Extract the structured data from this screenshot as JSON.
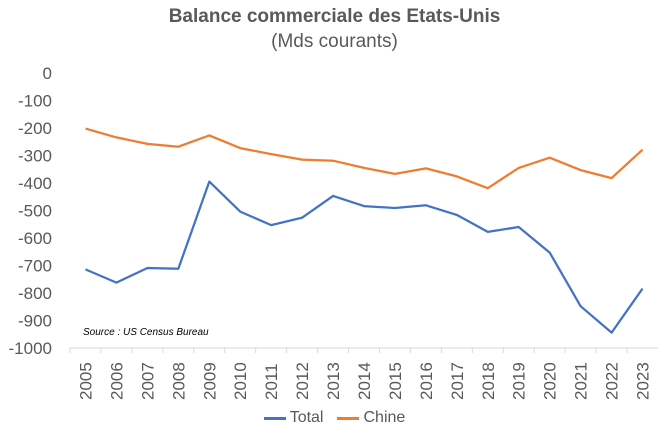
{
  "chart_data": {
    "type": "line",
    "title": "Balance commerciale des Etats-Unis",
    "subtitle": "(Mds courants)",
    "xlabel": "",
    "ylabel": "",
    "categories": [
      "2005",
      "2006",
      "2007",
      "2008",
      "2009",
      "2010",
      "2011",
      "2012",
      "2013",
      "2014",
      "2015",
      "2016",
      "2017",
      "2018",
      "2019",
      "2020",
      "2021",
      "2022",
      "2023"
    ],
    "ylim": [
      -1000,
      0
    ],
    "yticks": [
      0,
      -100,
      -200,
      -300,
      -400,
      -500,
      -600,
      -700,
      -800,
      -900,
      -1000
    ],
    "grid": false,
    "legend_position": "bottom",
    "source": "Source : US Census Bureau",
    "series": [
      {
        "name": "Total",
        "color": "#4472C4",
        "values": [
          -714,
          -762,
          -709,
          -712,
          -395,
          -504,
          -553,
          -526,
          -447,
          -484,
          -491,
          -481,
          -516,
          -578,
          -560,
          -653,
          -848,
          -944,
          -784
        ]
      },
      {
        "name": "Chine",
        "color": "#ED7D31",
        "values": [
          -202,
          -234,
          -258,
          -268,
          -227,
          -273,
          -295,
          -315,
          -319,
          -345,
          -367,
          -347,
          -376,
          -419,
          -345,
          -308,
          -353,
          -382,
          -279
        ]
      }
    ]
  }
}
